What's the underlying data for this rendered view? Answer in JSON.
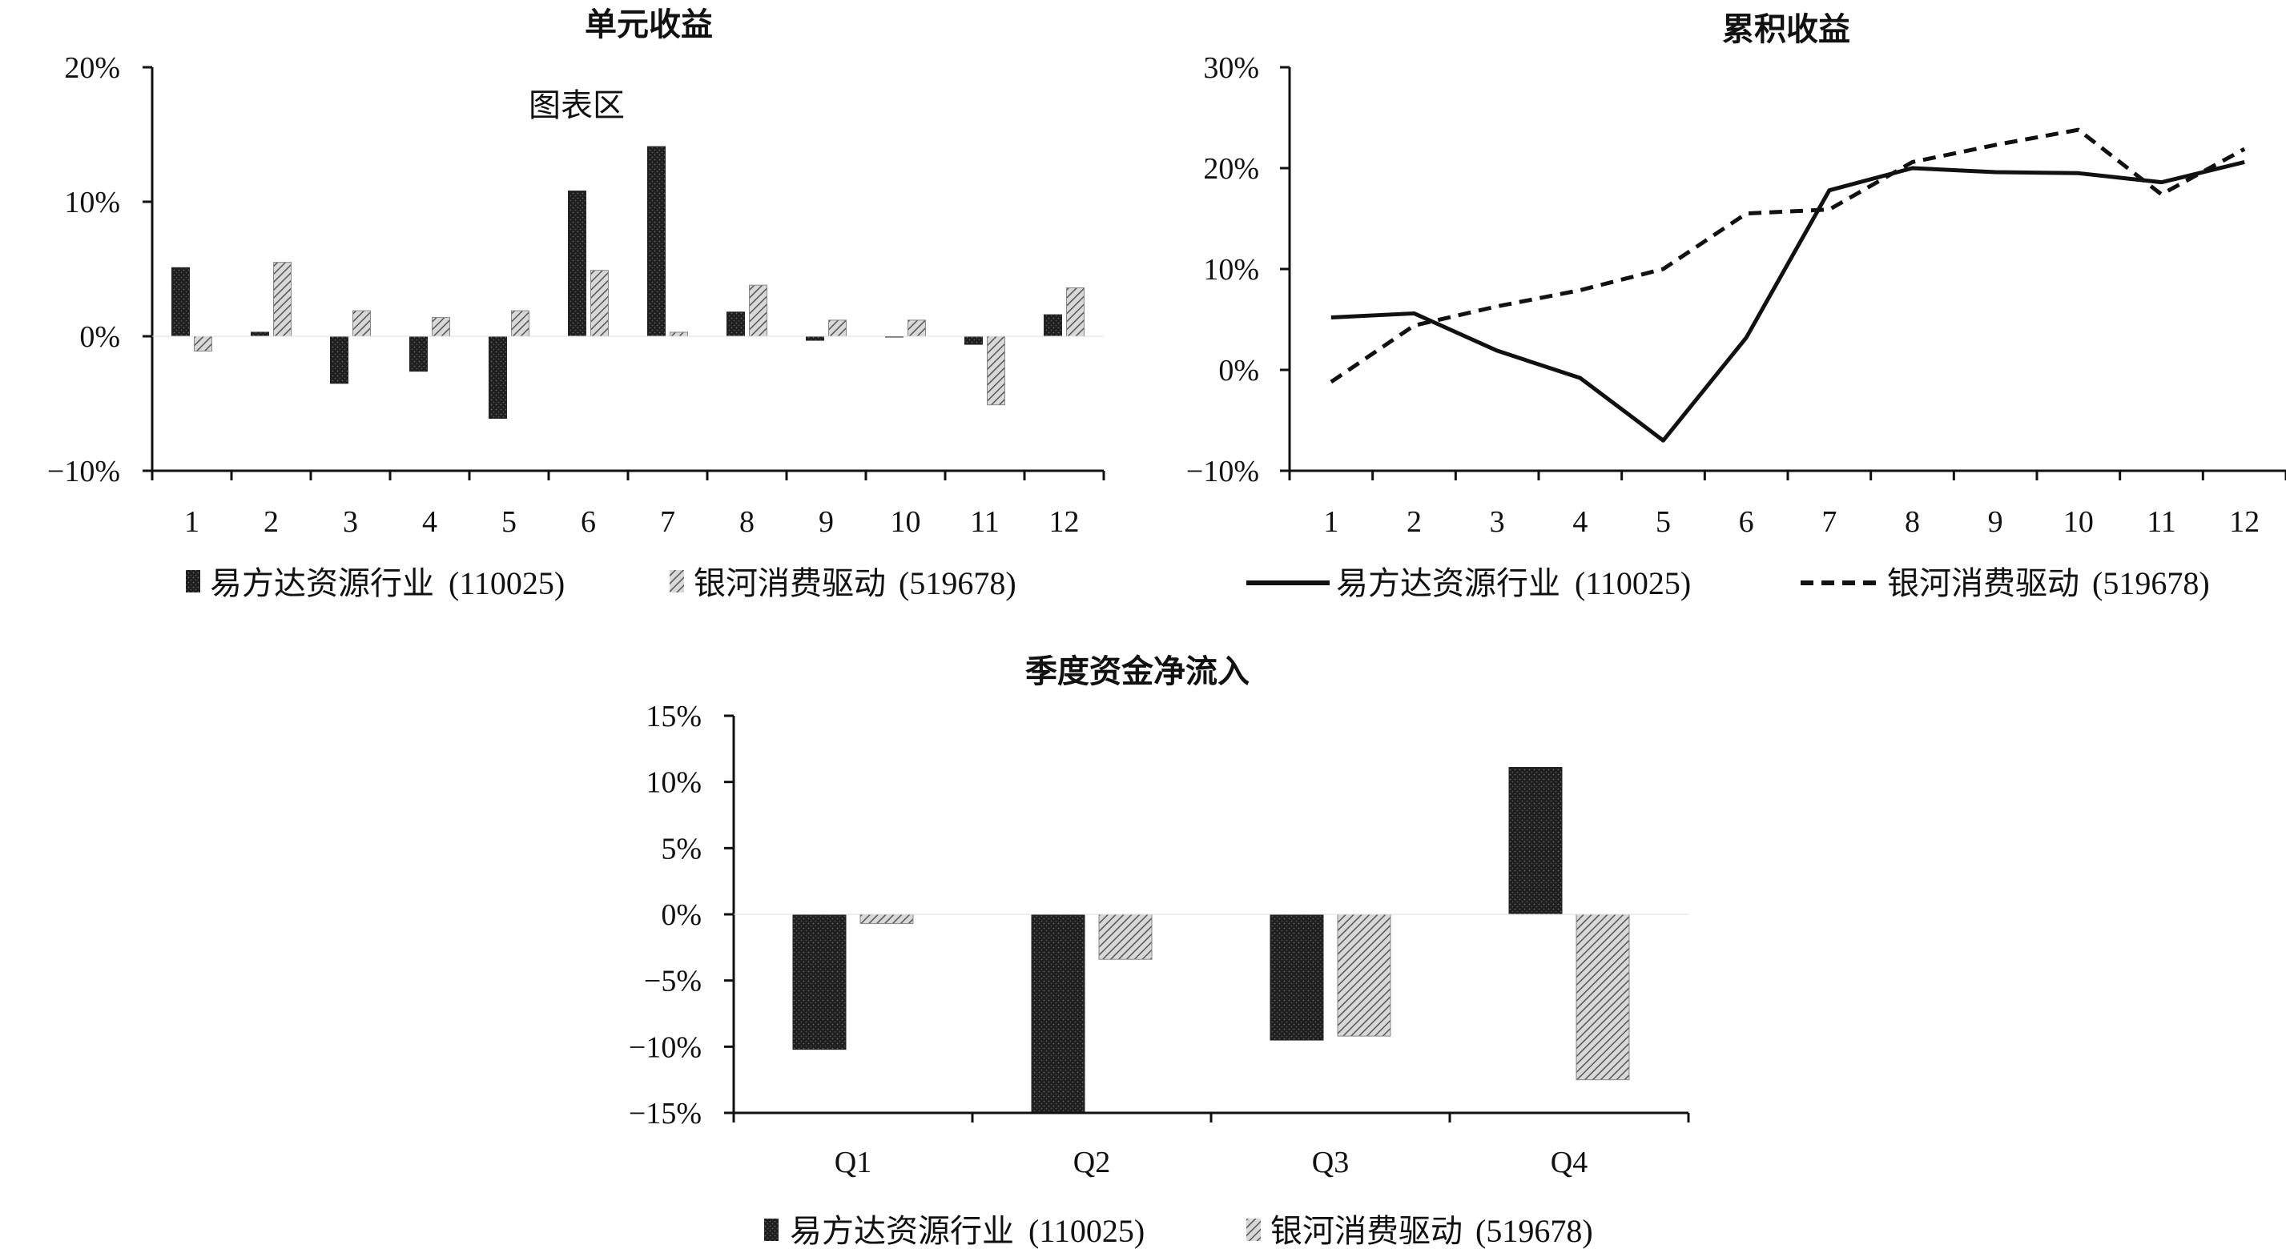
{
  "series_names": [
    "易方达资源行业 (110025)",
    "银河消费驱动 (519678)"
  ],
  "legend": {
    "s1_name": "易方达资源行业",
    "s1_code": "(110025)",
    "s2_name": "银河消费驱动",
    "s2_code": "(519678)"
  },
  "colors": {
    "dark": "#222222",
    "hatch": "#777777",
    "axis": "#111111"
  },
  "chart_data": [
    {
      "id": "unit-return",
      "type": "bar",
      "title": "单元收益",
      "subtitle": "图表区",
      "categories": [
        "1",
        "2",
        "3",
        "4",
        "5",
        "6",
        "7",
        "8",
        "9",
        "10",
        "11",
        "12"
      ],
      "ylim": [
        -10,
        20
      ],
      "yticks": [
        -10,
        0,
        10,
        20
      ],
      "ytick_labels": [
        "−10%",
        "0%",
        "10%",
        "20%"
      ],
      "series": [
        {
          "name": "易方达资源行业 (110025)",
          "values": [
            5.1,
            0.3,
            -3.5,
            -2.6,
            -6.1,
            10.8,
            14.1,
            1.8,
            -0.3,
            0.0,
            -0.6,
            1.6
          ]
        },
        {
          "name": "银河消费驱动 (519678)",
          "values": [
            -1.1,
            5.5,
            1.9,
            1.4,
            1.9,
            4.9,
            0.3,
            3.8,
            1.2,
            1.2,
            -5.1,
            3.6
          ]
        }
      ],
      "legend_position": "bottom"
    },
    {
      "id": "cumulative-return",
      "type": "line",
      "title": "累积收益",
      "categories": [
        "1",
        "2",
        "3",
        "4",
        "5",
        "6",
        "7",
        "8",
        "9",
        "10",
        "11",
        "12"
      ],
      "ylim": [
        -10,
        30
      ],
      "yticks": [
        -10,
        0,
        10,
        20,
        30
      ],
      "ytick_labels": [
        "−10%",
        "0%",
        "10%",
        "20%",
        "30%"
      ],
      "series": [
        {
          "name": "易方达资源行业 (110025)",
          "style": "solid",
          "values": [
            5.2,
            5.6,
            1.9,
            -0.8,
            -7.0,
            3.2,
            17.8,
            20.0,
            19.6,
            19.5,
            18.6,
            20.6
          ]
        },
        {
          "name": "银河消费驱动 (519678)",
          "style": "dashed",
          "values": [
            -1.2,
            4.4,
            6.3,
            7.9,
            10.0,
            15.5,
            15.9,
            20.6,
            22.3,
            23.8,
            17.4,
            21.9
          ]
        }
      ],
      "legend_position": "bottom"
    },
    {
      "id": "quarterly-net-inflow",
      "type": "bar",
      "title": "季度资金净流入",
      "categories": [
        "Q1",
        "Q2",
        "Q3",
        "Q4"
      ],
      "ylim": [
        -15,
        15
      ],
      "yticks": [
        -15,
        -10,
        -5,
        0,
        5,
        10,
        15
      ],
      "ytick_labels": [
        "−15%",
        "−10%",
        "−5%",
        "0%",
        "5%",
        "10%",
        "15%"
      ],
      "series": [
        {
          "name": "易方达资源行业 (110025)",
          "values": [
            -10.2,
            -14.9,
            -9.5,
            11.1
          ]
        },
        {
          "name": "银河消费驱动 (519678)",
          "values": [
            -0.7,
            -3.4,
            -9.2,
            -12.5
          ]
        }
      ],
      "legend_position": "bottom"
    }
  ]
}
